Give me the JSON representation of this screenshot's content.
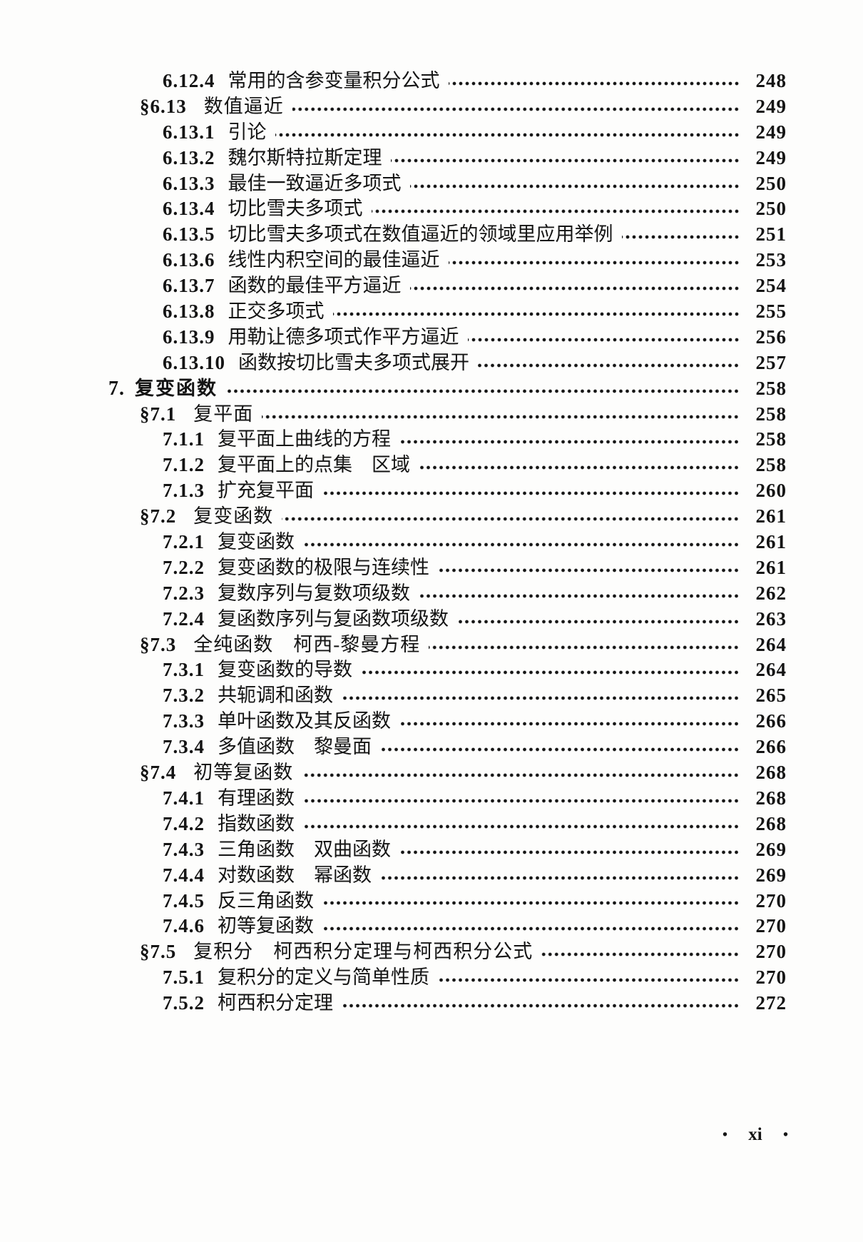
{
  "toc": {
    "entries": [
      {
        "level": 2,
        "num": "6.12.4",
        "title": "常用的含参变量积分公式",
        "page": "248"
      },
      {
        "level": 1,
        "num": "§6.13",
        "title": "数值逼近",
        "page": "249"
      },
      {
        "level": 2,
        "num": "6.13.1",
        "title": "引论",
        "page": "249"
      },
      {
        "level": 2,
        "num": "6.13.2",
        "title": "魏尔斯特拉斯定理",
        "page": "249"
      },
      {
        "level": 2,
        "num": "6.13.3",
        "title": "最佳一致逼近多项式",
        "page": "250"
      },
      {
        "level": 2,
        "num": "6.13.4",
        "title": "切比雪夫多项式",
        "page": "250"
      },
      {
        "level": 2,
        "num": "6.13.5",
        "title": "切比雪夫多项式在数值逼近的领域里应用举例",
        "page": "251"
      },
      {
        "level": 2,
        "num": "6.13.6",
        "title": "线性内积空间的最佳逼近",
        "page": "253"
      },
      {
        "level": 2,
        "num": "6.13.7",
        "title": "函数的最佳平方逼近",
        "page": "254"
      },
      {
        "level": 2,
        "num": "6.13.8",
        "title": "正交多项式",
        "page": "255"
      },
      {
        "level": 2,
        "num": "6.13.9",
        "title": "用勒让德多项式作平方逼近",
        "page": "256"
      },
      {
        "level": 2,
        "num": "6.13.10",
        "title": "函数按切比雪夫多项式展开",
        "page": "257"
      },
      {
        "level": 0,
        "num": "7.",
        "title": "复变函数",
        "page": "258"
      },
      {
        "level": 1,
        "num": "§7.1",
        "title": "复平面",
        "page": "258"
      },
      {
        "level": 2,
        "num": "7.1.1",
        "title": "复平面上曲线的方程",
        "page": "258"
      },
      {
        "level": 2,
        "num": "7.1.2",
        "title": "复平面上的点集　区域",
        "page": "258"
      },
      {
        "level": 2,
        "num": "7.1.3",
        "title": "扩充复平面",
        "page": "260"
      },
      {
        "level": 1,
        "num": "§7.2",
        "title": "复变函数",
        "page": "261"
      },
      {
        "level": 2,
        "num": "7.2.1",
        "title": "复变函数",
        "page": "261"
      },
      {
        "level": 2,
        "num": "7.2.2",
        "title": "复变函数的极限与连续性",
        "page": "261"
      },
      {
        "level": 2,
        "num": "7.2.3",
        "title": "复数序列与复数项级数",
        "page": "262"
      },
      {
        "level": 2,
        "num": "7.2.4",
        "title": "复函数序列与复函数项级数",
        "page": "263"
      },
      {
        "level": 1,
        "num": "§7.3",
        "title": "全纯函数　柯西-黎曼方程",
        "page": "264"
      },
      {
        "level": 2,
        "num": "7.3.1",
        "title": "复变函数的导数",
        "page": "264"
      },
      {
        "level": 2,
        "num": "7.3.2",
        "title": "共轭调和函数",
        "page": "265"
      },
      {
        "level": 2,
        "num": "7.3.3",
        "title": "单叶函数及其反函数",
        "page": "266"
      },
      {
        "level": 2,
        "num": "7.3.4",
        "title": "多值函数　黎曼面",
        "page": "266"
      },
      {
        "level": 1,
        "num": "§7.4",
        "title": "初等复函数",
        "page": "268"
      },
      {
        "level": 2,
        "num": "7.4.1",
        "title": "有理函数",
        "page": "268"
      },
      {
        "level": 2,
        "num": "7.4.2",
        "title": "指数函数",
        "page": "268"
      },
      {
        "level": 2,
        "num": "7.4.3",
        "title": "三角函数　双曲函数",
        "page": "269"
      },
      {
        "level": 2,
        "num": "7.4.4",
        "title": "对数函数　幂函数",
        "page": "269"
      },
      {
        "level": 2,
        "num": "7.4.5",
        "title": "反三角函数",
        "page": "270"
      },
      {
        "level": 2,
        "num": "7.4.6",
        "title": "初等复函数",
        "page": "270"
      },
      {
        "level": 1,
        "num": "§7.5",
        "title": "复积分　柯西积分定理与柯西积分公式",
        "page": "270"
      },
      {
        "level": 2,
        "num": "7.5.1",
        "title": "复积分的定义与简单性质",
        "page": "270"
      },
      {
        "level": 2,
        "num": "7.5.2",
        "title": "柯西积分定理",
        "page": "272"
      }
    ]
  },
  "footer": {
    "left_bullet": "•",
    "label": "xi",
    "right_bullet": "•"
  }
}
